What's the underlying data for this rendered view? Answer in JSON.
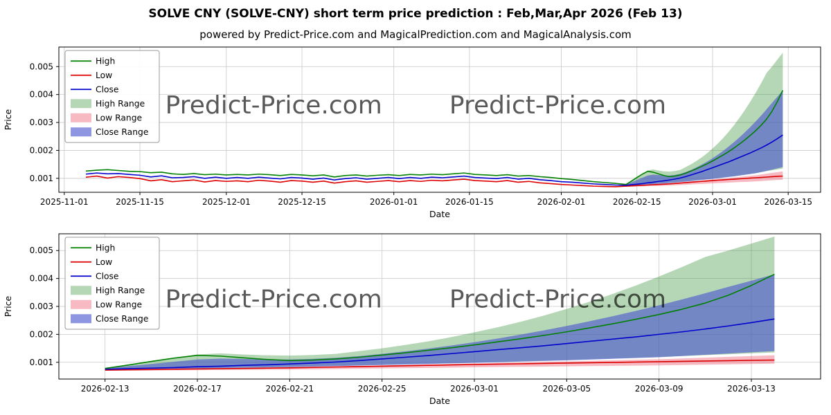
{
  "title": "SOLVE CNY (SOLVE-CNY) short term price prediction : Feb,Mar,Apr 2026 (Feb 13)",
  "subtitle": "powered by Predict-Price.com and MagicalPrediction.com and MagicalAnalysis.com",
  "watermark": "Predict-Price.com",
  "colors": {
    "high": "#008000",
    "low": "#dd0000",
    "close": "#0000cd",
    "high_range": "#2e8b2e",
    "low_range": "#ee6677",
    "close_range": "#4a55cf",
    "grid": "#c8c8c8",
    "watermark": "#bcbcbc",
    "axis": "#000000"
  },
  "band_opacity": {
    "high_range": 0.35,
    "low_range": 0.45,
    "close_range": 0.62
  },
  "legend": [
    {
      "label": "High",
      "kind": "line",
      "color_key": "high"
    },
    {
      "label": "Low",
      "kind": "line",
      "color_key": "low"
    },
    {
      "label": "Close",
      "kind": "line",
      "color_key": "close"
    },
    {
      "label": "High Range",
      "kind": "band",
      "color_key": "high_range"
    },
    {
      "label": "Low Range",
      "kind": "band",
      "color_key": "low_range"
    },
    {
      "label": "Close Range",
      "kind": "band",
      "color_key": "close_range"
    }
  ],
  "series": {
    "history": {
      "start_date": "2025-11-05",
      "step_days": 2,
      "high": [
        0.00126,
        0.00129,
        0.00131,
        0.00128,
        0.00125,
        0.00124,
        0.0012,
        0.00122,
        0.00116,
        0.00114,
        0.00117,
        0.00113,
        0.00115,
        0.00112,
        0.00114,
        0.00112,
        0.00115,
        0.00113,
        0.0011,
        0.00114,
        0.00112,
        0.00109,
        0.00112,
        0.00105,
        0.0011,
        0.00112,
        0.00108,
        0.00111,
        0.00113,
        0.0011,
        0.00114,
        0.00112,
        0.00115,
        0.00113,
        0.00116,
        0.00119,
        0.00114,
        0.00112,
        0.0011,
        0.00113,
        0.00108,
        0.0011,
        0.00106,
        0.00103,
        0.00099,
        0.00096,
        0.00092,
        0.00088,
        0.00085,
        0.00082
      ],
      "low": [
        0.00104,
        0.00108,
        0.00101,
        0.00106,
        0.00103,
        0.00099,
        0.00091,
        0.00095,
        0.00088,
        0.00091,
        0.00094,
        0.00087,
        0.00092,
        0.00089,
        0.00091,
        0.00088,
        0.00093,
        0.0009,
        0.00086,
        0.00092,
        0.0009,
        0.00086,
        0.0009,
        0.00083,
        0.00088,
        0.00091,
        0.00086,
        0.00089,
        0.00092,
        0.00088,
        0.00092,
        0.00089,
        0.00093,
        0.00091,
        0.00094,
        0.00097,
        0.00092,
        0.0009,
        0.00088,
        0.00092,
        0.00086,
        0.00089,
        0.00084,
        0.00081,
        0.00078,
        0.00076,
        0.00074,
        0.00072,
        0.00071,
        0.0007
      ],
      "close": [
        0.00115,
        0.00119,
        0.00116,
        0.00117,
        0.00114,
        0.00111,
        0.00105,
        0.00109,
        0.00102,
        0.00103,
        0.00106,
        0.001,
        0.00104,
        0.001,
        0.00103,
        0.001,
        0.00104,
        0.00101,
        0.00098,
        0.00103,
        0.00101,
        0.00097,
        0.00101,
        0.00094,
        0.00099,
        0.00102,
        0.00097,
        0.001,
        0.00103,
        0.00099,
        0.00103,
        0.001,
        0.00104,
        0.00102,
        0.00105,
        0.00108,
        0.00103,
        0.00101,
        0.00099,
        0.00103,
        0.00097,
        0.001,
        0.00095,
        0.00092,
        0.00088,
        0.00086,
        0.00083,
        0.0008,
        0.00078,
        0.00076
      ]
    },
    "prediction": {
      "start_date": "2026-02-13",
      "step_days": 1,
      "high": [
        0.00078,
        0.0009,
        0.00103,
        0.00115,
        0.00125,
        0.00122,
        0.00116,
        0.0011,
        0.00106,
        0.00108,
        0.00112,
        0.00118,
        0.00126,
        0.00134,
        0.00143,
        0.00152,
        0.00162,
        0.00173,
        0.00184,
        0.00196,
        0.00209,
        0.00223,
        0.00238,
        0.00254,
        0.00271,
        0.0029,
        0.00312,
        0.0034,
        0.00375,
        0.00415
      ],
      "low": [
        0.00072,
        0.00073,
        0.00074,
        0.00075,
        0.00076,
        0.00077,
        0.00078,
        0.00079,
        0.0008,
        0.000815,
        0.00083,
        0.000845,
        0.00086,
        0.000875,
        0.00089,
        0.000905,
        0.00092,
        0.000933,
        0.000945,
        0.000958,
        0.00097,
        0.000983,
        0.000995,
        0.001008,
        0.00102,
        0.001032,
        0.001045,
        0.001058,
        0.00107,
        0.00108
      ],
      "close": [
        0.00075,
        0.00077,
        0.00079,
        0.00081,
        0.00084,
        0.00086,
        0.00089,
        0.00091,
        0.00094,
        0.00097,
        0.00101,
        0.00106,
        0.00112,
        0.00118,
        0.00124,
        0.00131,
        0.00138,
        0.00145,
        0.00152,
        0.00159,
        0.00167,
        0.00175,
        0.00183,
        0.00191,
        0.002,
        0.00209,
        0.00219,
        0.0023,
        0.00242,
        0.00255
      ],
      "high_range": {
        "upper": [
          0.0008,
          0.00092,
          0.00104,
          0.00116,
          0.00128,
          0.00132,
          0.00128,
          0.00125,
          0.00124,
          0.00126,
          0.0013,
          0.0014,
          0.0015,
          0.00162,
          0.00175,
          0.0019,
          0.00207,
          0.00225,
          0.00245,
          0.00267,
          0.00291,
          0.00317,
          0.00345,
          0.00375,
          0.00407,
          0.00441,
          0.00477,
          0.005,
          0.00525,
          0.0055
        ],
        "lower": [
          0.00074,
          0.000752,
          0.000764,
          0.000777,
          0.00079,
          0.000802,
          0.000815,
          0.000827,
          0.00084,
          0.000857,
          0.000875,
          0.000892,
          0.00091,
          0.00093,
          0.00095,
          0.00097,
          0.00099,
          0.001012,
          0.001035,
          0.001057,
          0.00108,
          0.001107,
          0.001135,
          0.001162,
          0.00119,
          0.001222,
          0.001254,
          0.001286,
          0.001318,
          0.00135
        ]
      },
      "low_range": {
        "upper": [
          0.00074,
          0.00075,
          0.00076,
          0.00077,
          0.00078,
          0.000792,
          0.000805,
          0.000817,
          0.00083,
          0.000845,
          0.00086,
          0.000875,
          0.00089,
          0.000907,
          0.000925,
          0.000942,
          0.00096,
          0.000977,
          0.000995,
          0.001012,
          0.00103,
          0.00105,
          0.00107,
          0.00109,
          0.00111,
          0.001138,
          0.001166,
          0.001194,
          0.001222,
          0.00125
        ],
        "lower": [
          0.0007,
          0.000705,
          0.00071,
          0.000715,
          0.00072,
          0.000725,
          0.00073,
          0.000735,
          0.00074,
          0.00075,
          0.00076,
          0.00077,
          0.00078,
          0.00079,
          0.0008,
          0.00081,
          0.00082,
          0.000829,
          0.000838,
          0.000846,
          0.000855,
          0.000864,
          0.000872,
          0.000881,
          0.00089,
          0.000902,
          0.000914,
          0.000926,
          0.000938,
          0.00095
        ]
      },
      "close_range": {
        "upper": [
          0.00078,
          0.00086,
          0.00094,
          0.00102,
          0.0011,
          0.00113,
          0.00112,
          0.0011,
          0.0011,
          0.00112,
          0.00116,
          0.00122,
          0.0013,
          0.00139,
          0.00149,
          0.0016,
          0.00172,
          0.00185,
          0.00199,
          0.00214,
          0.0023,
          0.00247,
          0.00265,
          0.00284,
          0.00304,
          0.00325,
          0.00347,
          0.0037,
          0.00392,
          0.00415
        ],
        "lower": [
          0.00073,
          0.000742,
          0.000755,
          0.000767,
          0.00078,
          0.000792,
          0.000805,
          0.000817,
          0.00083,
          0.000847,
          0.000865,
          0.000882,
          0.0009,
          0.00092,
          0.00094,
          0.00096,
          0.00098,
          0.001002,
          0.001025,
          0.001047,
          0.00107,
          0.001097,
          0.001125,
          0.001152,
          0.00118,
          0.001224,
          0.001268,
          0.001312,
          0.001356,
          0.0014
        ]
      }
    }
  },
  "chart_data": [
    {
      "type": "line",
      "name": "history-and-prediction",
      "segments": [
        "history",
        "prediction"
      ],
      "xlabel": "Date",
      "ylabel": "Price",
      "xdomain": [
        "2025-10-31",
        "2026-03-21"
      ],
      "ydomain": [
        0.0005,
        0.0057
      ],
      "yticks": [
        0.001,
        0.002,
        0.003,
        0.004,
        0.005
      ],
      "xticks": [
        "2025-11-01",
        "2025-11-15",
        "2025-12-01",
        "2025-12-15",
        "2026-01-01",
        "2026-01-15",
        "2026-02-01",
        "2026-02-15",
        "2026-03-01",
        "2026-03-15"
      ],
      "grid": true,
      "legend_position": "upper-left"
    },
    {
      "type": "line",
      "name": "prediction-detail",
      "segments": [
        "prediction"
      ],
      "xlabel": "Date",
      "ylabel": "Price",
      "xdomain": [
        "2026-02-11",
        "2026-03-16"
      ],
      "ydomain": [
        0.0004,
        0.0056
      ],
      "yticks": [
        0.001,
        0.002,
        0.003,
        0.004,
        0.005
      ],
      "xticks": [
        "2026-02-13",
        "2026-02-17",
        "2026-02-21",
        "2026-02-25",
        "2026-03-01",
        "2026-03-05",
        "2026-03-09",
        "2026-03-13"
      ],
      "grid": true,
      "legend_position": "upper-left"
    }
  ]
}
